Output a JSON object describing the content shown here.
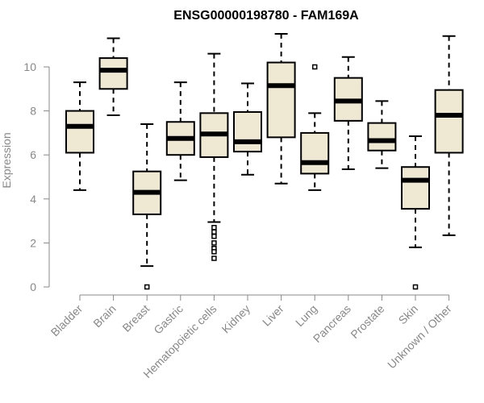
{
  "chart_data": {
    "type": "boxplot",
    "title": "ENSG00000198780 - FAM169A",
    "xlabel": "",
    "ylabel": "Expression",
    "ylim": [
      0,
      11.5
    ],
    "yticks": [
      0,
      2,
      4,
      6,
      8,
      10
    ],
    "grid": false,
    "box_fill": "#efe9d4",
    "box_stroke": "#000000",
    "categories": [
      "Bladder",
      "Brain",
      "Breast",
      "Gastric",
      "Hematopoietic cells",
      "Kidney",
      "Liver",
      "Lung",
      "Pancreas",
      "Prostate",
      "Skin",
      "Unknown / Other"
    ],
    "boxes": [
      {
        "min": 4.4,
        "q1": 6.1,
        "median": 7.3,
        "q3": 8.0,
        "max": 9.3,
        "outliers": []
      },
      {
        "min": 7.8,
        "q1": 9.0,
        "median": 9.85,
        "q3": 10.4,
        "max": 11.3,
        "outliers": []
      },
      {
        "min": 0.95,
        "q1": 3.3,
        "median": 4.3,
        "q3": 5.25,
        "max": 7.4,
        "outliers": [
          0.0
        ]
      },
      {
        "min": 4.85,
        "q1": 6.0,
        "median": 6.75,
        "q3": 7.5,
        "max": 9.3,
        "outliers": []
      },
      {
        "min": 2.95,
        "q1": 5.9,
        "median": 6.95,
        "q3": 7.9,
        "max": 10.6,
        "outliers": [
          2.7,
          2.5,
          2.3,
          2.0,
          1.75,
          1.6,
          1.3
        ]
      },
      {
        "min": 5.1,
        "q1": 6.15,
        "median": 6.6,
        "q3": 7.95,
        "max": 9.25,
        "outliers": []
      },
      {
        "min": 4.7,
        "q1": 6.8,
        "median": 9.15,
        "q3": 10.2,
        "max": 11.5,
        "outliers": []
      },
      {
        "min": 4.4,
        "q1": 5.15,
        "median": 5.65,
        "q3": 7.0,
        "max": 7.9,
        "outliers": [
          10.0
        ]
      },
      {
        "min": 5.35,
        "q1": 7.55,
        "median": 8.45,
        "q3": 9.5,
        "max": 10.45,
        "outliers": []
      },
      {
        "min": 5.4,
        "q1": 6.2,
        "median": 6.65,
        "q3": 7.45,
        "max": 8.45,
        "outliers": []
      },
      {
        "min": 1.8,
        "q1": 3.55,
        "median": 4.85,
        "q3": 5.45,
        "max": 6.85,
        "outliers": [
          0.0
        ]
      },
      {
        "min": 2.35,
        "q1": 6.1,
        "median": 7.8,
        "q3": 8.95,
        "max": 11.4,
        "outliers": []
      }
    ]
  }
}
